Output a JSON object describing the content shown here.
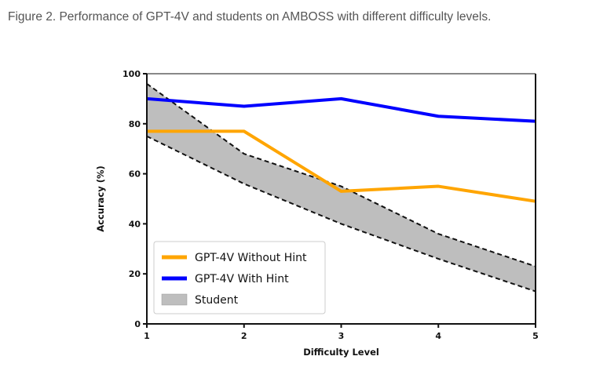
{
  "caption": "Figure 2. Performance of GPT-4V and students on AMBOSS with different difficulty levels.",
  "chart_data": {
    "type": "line",
    "title": "",
    "xlabel": "Difficulty Level",
    "ylabel": "Accuracy (%)",
    "x": [
      1,
      2,
      3,
      4,
      5
    ],
    "xticks": [
      "1",
      "2",
      "3",
      "4",
      "5"
    ],
    "yticks": [
      "0",
      "20",
      "40",
      "60",
      "80",
      "100"
    ],
    "xlim": [
      1,
      5
    ],
    "ylim": [
      0,
      100
    ],
    "grid": false,
    "legend_position": "lower-left",
    "series": [
      {
        "name": "GPT-4V Without Hint",
        "values": [
          77,
          77,
          53,
          55,
          49
        ],
        "color": "#FFA500",
        "style": "line"
      },
      {
        "name": "GPT-4V With Hint",
        "values": [
          90,
          87,
          90,
          83,
          81
        ],
        "color": "#0000FF",
        "style": "line"
      }
    ],
    "band": {
      "name": "Student",
      "upper": [
        96,
        68,
        55,
        36,
        23
      ],
      "lower": [
        75,
        56,
        40,
        26,
        13
      ],
      "color": "#BEBEBE",
      "edge_color": "#111111",
      "edge_style": "dashed"
    }
  }
}
